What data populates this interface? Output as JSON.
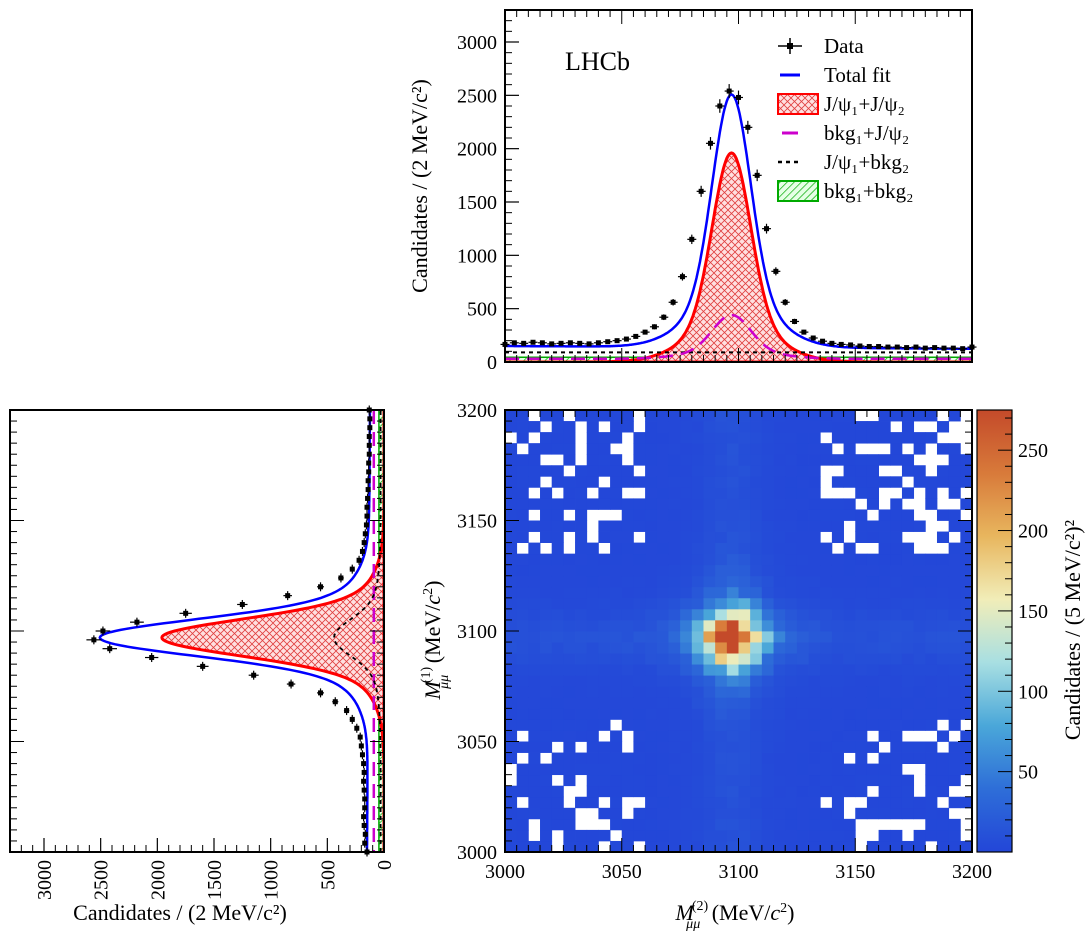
{
  "figure": {
    "experiment_label": "LHCb"
  },
  "chart_data": [
    {
      "id": "projection-top",
      "type": "line",
      "xlim": [
        3000,
        3200
      ],
      "ylim": [
        0,
        3300
      ],
      "yticks": [
        0,
        500,
        1000,
        1500,
        2000,
        2500,
        3000
      ],
      "tick_labels_y": [
        "0",
        "500",
        "1000",
        "1500",
        "2000",
        "2500",
        "3000"
      ],
      "ylabel": "Candidates / (2 MeV/c²)",
      "legend_position": "top-right",
      "legend": [
        {
          "key": "data",
          "label": "Data",
          "style": "marker-errorbar",
          "color": "#000000"
        },
        {
          "key": "total",
          "label": "Total fit",
          "style": "line",
          "color": "#0000ff"
        },
        {
          "key": "sig",
          "label": "J/ψ₁+J/ψ₂",
          "style": "hatched-fill",
          "color": "#ff0000"
        },
        {
          "key": "bkg1",
          "label": "bkg₁+J/ψ₂",
          "style": "dashed-line",
          "color": "#cc00cc"
        },
        {
          "key": "bkg2",
          "label": "J/ψ₁+bkg₂",
          "style": "dotted-line",
          "color": "#000000"
        },
        {
          "key": "bb",
          "label": "bkg₁+bkg₂",
          "style": "hatched-fill",
          "color": "#00aa00"
        }
      ],
      "components": {
        "total_fit": {
          "peak_x": 3097,
          "peak_y": 2520,
          "baseline_y": 150
        },
        "jpsi_jpsi": {
          "peak_x": 3097,
          "peak_y": 1960
        },
        "bkg1_jpsi2": {
          "peak_x": 3097,
          "peak_y": 410
        },
        "jpsi1_bkg2": {
          "level_y": 90
        },
        "bkg1_bkg2": {
          "level_y": 45
        }
      },
      "data_points": {
        "x": [
          3000,
          3004,
          3008,
          3012,
          3016,
          3020,
          3024,
          3028,
          3032,
          3036,
          3040,
          3044,
          3048,
          3052,
          3056,
          3060,
          3064,
          3068,
          3072,
          3076,
          3080,
          3084,
          3088,
          3092,
          3096,
          3100,
          3104,
          3108,
          3112,
          3116,
          3120,
          3124,
          3128,
          3132,
          3136,
          3140,
          3144,
          3148,
          3152,
          3156,
          3160,
          3164,
          3168,
          3172,
          3176,
          3180,
          3184,
          3188,
          3192,
          3196,
          3200
        ],
        "y": [
          165,
          180,
          175,
          185,
          180,
          170,
          175,
          180,
          175,
          170,
          180,
          190,
          200,
          215,
          240,
          280,
          330,
          420,
          560,
          800,
          1150,
          1600,
          2050,
          2400,
          2540,
          2480,
          2200,
          1750,
          1250,
          850,
          560,
          380,
          280,
          225,
          195,
          175,
          165,
          160,
          150,
          145,
          145,
          140,
          140,
          135,
          140,
          130,
          135,
          130,
          130,
          125,
          140
        ]
      }
    },
    {
      "id": "projection-left",
      "type": "line",
      "orientation": "horizontal",
      "ylim": [
        3000,
        3200
      ],
      "xlim": [
        0,
        3300
      ],
      "xticks": [
        0,
        500,
        1000,
        1500,
        2000,
        2500,
        3000
      ],
      "tick_labels_x": [
        "0",
        "500",
        "1000",
        "1500",
        "2000",
        "2500",
        "3000"
      ],
      "xlabel": "Candidates / (2 MeV/c²)",
      "components": {
        "total_fit": {
          "peak_y": 3097,
          "peak_x": 2520,
          "baseline_x": 150
        },
        "jpsi_jpsi": {
          "peak_y": 3097,
          "peak_x": 1960
        },
        "jpsi1_bkg2": {
          "peak_y": 3097,
          "peak_x": 410
        },
        "bkg1_jpsi2": {
          "level_x": 90
        },
        "bkg1_bkg2": {
          "level_x": 45
        }
      },
      "data_points": {
        "y": [
          3000,
          3004,
          3008,
          3012,
          3016,
          3020,
          3024,
          3028,
          3032,
          3036,
          3040,
          3044,
          3048,
          3052,
          3056,
          3060,
          3064,
          3068,
          3072,
          3076,
          3080,
          3084,
          3088,
          3092,
          3096,
          3100,
          3104,
          3108,
          3112,
          3116,
          3120,
          3124,
          3128,
          3132,
          3136,
          3140,
          3144,
          3148,
          3152,
          3156,
          3160,
          3164,
          3168,
          3172,
          3176,
          3180,
          3184,
          3188,
          3192,
          3196,
          3200
        ],
        "x": [
          150,
          170,
          165,
          175,
          180,
          170,
          170,
          175,
          180,
          175,
          180,
          190,
          200,
          210,
          240,
          280,
          330,
          430,
          560,
          820,
          1150,
          1600,
          2050,
          2420,
          2560,
          2480,
          2180,
          1750,
          1250,
          850,
          560,
          380,
          280,
          220,
          190,
          175,
          165,
          155,
          150,
          150,
          145,
          140,
          140,
          135,
          135,
          130,
          130,
          130,
          125,
          125,
          130
        ]
      }
    },
    {
      "id": "heatmap-2d",
      "type": "heatmap",
      "xlim": [
        3000,
        3200
      ],
      "ylim": [
        3000,
        3200
      ],
      "xticks": [
        3000,
        3050,
        3100,
        3150,
        3200
      ],
      "yticks": [
        3000,
        3050,
        3100,
        3150,
        3200
      ],
      "tick_labels_x": [
        "3000",
        "3050",
        "3100",
        "3150",
        "3200"
      ],
      "tick_labels_y": [
        "3000",
        "3050",
        "3100",
        "3150",
        "3200"
      ],
      "xlabel": "M_μμ^(2) (MeV/c²)",
      "ylabel": "M_μμ^(1) (MeV/c²)",
      "bins": 40,
      "peak": {
        "x": 3097,
        "y": 3097,
        "value": 275
      },
      "colorbar": {
        "zlim": [
          0,
          275
        ],
        "ticks": [
          50,
          100,
          150,
          200,
          250
        ],
        "tick_labels": [
          "50",
          "100",
          "150",
          "200",
          "250"
        ],
        "label": "Candidates / (5 MeV/c²)²",
        "colors": [
          "#2346d8",
          "#2e6ed8",
          "#4aa7d9",
          "#a8dfe2",
          "#f1edb8",
          "#e8b65e",
          "#d87a3a",
          "#c44a2a"
        ]
      }
    }
  ]
}
